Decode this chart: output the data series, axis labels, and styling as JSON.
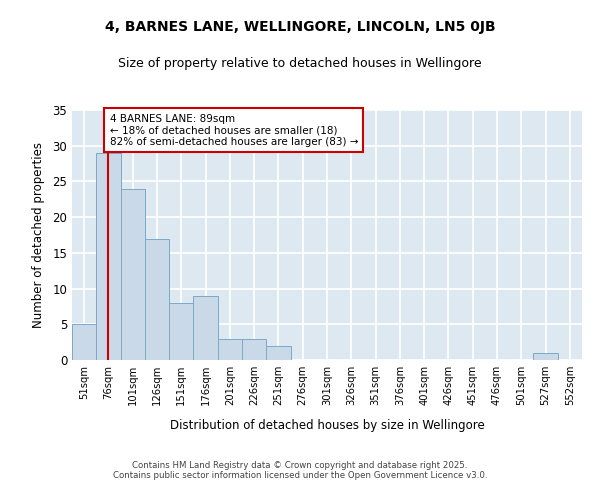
{
  "title1": "4, BARNES LANE, WELLINGORE, LINCOLN, LN5 0JB",
  "title2": "Size of property relative to detached houses in Wellingore",
  "xlabel": "Distribution of detached houses by size in Wellingore",
  "ylabel": "Number of detached properties",
  "categories": [
    "51sqm",
    "76sqm",
    "101sqm",
    "126sqm",
    "151sqm",
    "176sqm",
    "201sqm",
    "226sqm",
    "251sqm",
    "276sqm",
    "301sqm",
    "326sqm",
    "351sqm",
    "376sqm",
    "401sqm",
    "426sqm",
    "451sqm",
    "476sqm",
    "501sqm",
    "527sqm",
    "552sqm"
  ],
  "values": [
    5,
    29,
    24,
    17,
    8,
    9,
    3,
    3,
    2,
    0,
    0,
    0,
    0,
    0,
    0,
    0,
    0,
    0,
    0,
    1,
    0
  ],
  "bar_color": "#c9d9e8",
  "bar_edge_color": "#7aaac8",
  "vline_x": 1.0,
  "vline_color": "#cc0000",
  "annotation_text": "4 BARNES LANE: 89sqm\n← 18% of detached houses are smaller (18)\n82% of semi-detached houses are larger (83) →",
  "annotation_box_color": "#ffffff",
  "annotation_box_edge": "#cc0000",
  "ylim": [
    0,
    35
  ],
  "yticks": [
    0,
    5,
    10,
    15,
    20,
    25,
    30,
    35
  ],
  "background_color": "#dde8f0",
  "grid_color": "#ffffff",
  "footer_line1": "Contains HM Land Registry data © Crown copyright and database right 2025.",
  "footer_line2": "Contains public sector information licensed under the Open Government Licence v3.0."
}
